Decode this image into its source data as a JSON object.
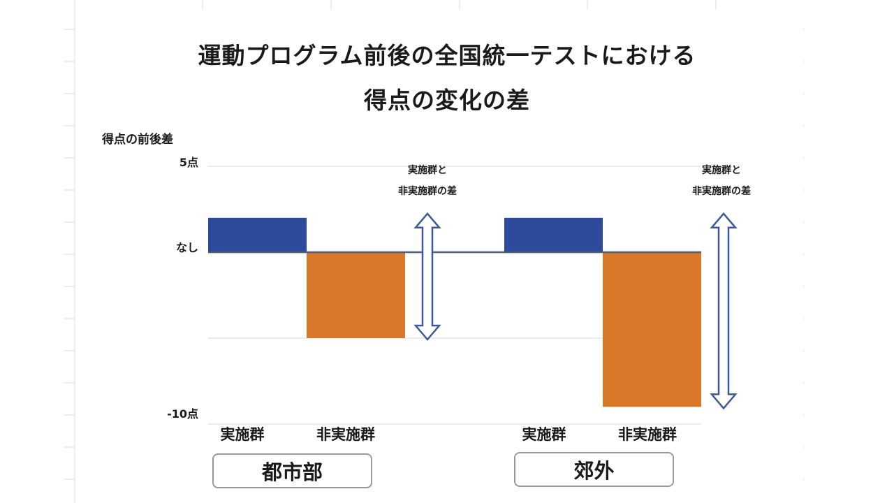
{
  "chart_data": {
    "type": "bar",
    "title_lines": [
      "運動プログラム前後の全国統一テストにおける",
      "得点の変化の差"
    ],
    "ylabel": "得点の前後差",
    "ytick_labels": [
      {
        "value": 5,
        "label": "5点"
      },
      {
        "value": 0,
        "label": "なし"
      },
      {
        "value": -10,
        "label": "-10点"
      }
    ],
    "ylim": [
      -10,
      5
    ],
    "groups": [
      {
        "name": "都市部",
        "categories": [
          "実施群",
          "非実施群"
        ],
        "values": [
          2,
          -5
        ],
        "diff_label": [
          "実施群と",
          "非実施群の差"
        ],
        "diff_range": [
          -5,
          2
        ]
      },
      {
        "name": "郊外",
        "categories": [
          "実施群",
          "非実施群"
        ],
        "values": [
          2,
          -9
        ],
        "diff_label": [
          "実施群と",
          "非実施群の差"
        ],
        "diff_range": [
          -9,
          2
        ]
      }
    ],
    "colors": {
      "実施群": "#2e4a9b",
      "非実施群": "#d97828",
      "arrow": "#3c5a9a",
      "baseline": "#4a5a75",
      "grid": "#e6e6e6"
    },
    "grid": true,
    "legend": "none"
  }
}
